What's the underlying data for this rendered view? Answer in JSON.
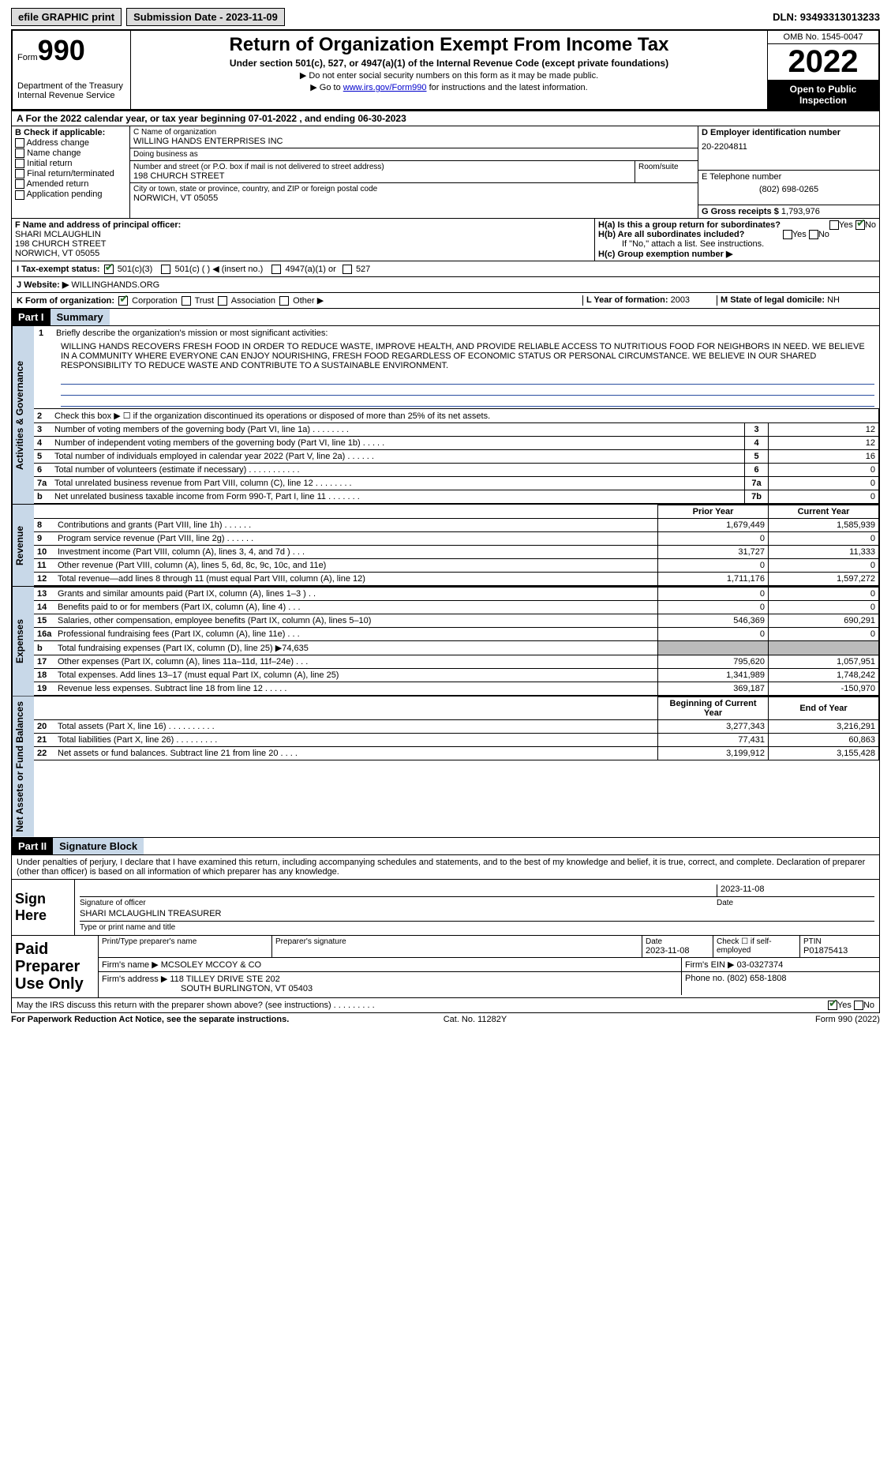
{
  "topbar": {
    "efile": "efile GRAPHIC print",
    "submission": "Submission Date - 2023-11-09",
    "dln": "DLN: 93493313013233"
  },
  "header": {
    "form_word": "Form",
    "form_num": "990",
    "title": "Return of Organization Exempt From Income Tax",
    "subtitle": "Under section 501(c), 527, or 4947(a)(1) of the Internal Revenue Code (except private foundations)",
    "note1": "▶ Do not enter social security numbers on this form as it may be made public.",
    "note2_pre": "▶ Go to ",
    "note2_link": "www.irs.gov/Form990",
    "note2_post": " for instructions and the latest information.",
    "omb": "OMB No. 1545-0047",
    "year": "2022",
    "open": "Open to Public Inspection",
    "dept": "Department of the Treasury\nInternal Revenue Service"
  },
  "row_a": "A For the 2022 calendar year, or tax year beginning 07-01-2022    , and ending 06-30-2023",
  "b": {
    "label": "B Check if applicable:",
    "opts": [
      "Address change",
      "Name change",
      "Initial return",
      "Final return/terminated",
      "Amended return",
      "Application pending"
    ]
  },
  "c": {
    "name_label": "C Name of organization",
    "name": "WILLING HANDS ENTERPRISES INC",
    "dba_label": "Doing business as",
    "dba": "",
    "addr_label": "Number and street (or P.O. box if mail is not delivered to street address)",
    "addr": "198 CHURCH STREET",
    "room_label": "Room/suite",
    "city_label": "City or town, state or province, country, and ZIP or foreign postal code",
    "city": "NORWICH, VT  05055"
  },
  "d": {
    "label": "D Employer identification number",
    "val": "20-2204811"
  },
  "e": {
    "label": "E Telephone number",
    "val": "(802) 698-0265"
  },
  "g": {
    "label": "G Gross receipts $",
    "val": "1,793,976"
  },
  "f": {
    "label": "F  Name and address of principal officer:",
    "name": "SHARI MCLAUGHLIN",
    "addr1": "198 CHURCH STREET",
    "addr2": "NORWICH, VT  05055"
  },
  "h": {
    "a": "H(a)  Is this a group return for subordinates?",
    "b": "H(b)  Are all subordinates included?",
    "note": "If \"No,\" attach a list. See instructions.",
    "c": "H(c)  Group exemption number ▶",
    "yes": "Yes",
    "no": "No"
  },
  "i": {
    "label": "I   Tax-exempt status:",
    "o1": "501(c)(3)",
    "o2": "501(c) (   ) ◀ (insert no.)",
    "o3": "4947(a)(1) or",
    "o4": "527"
  },
  "j": {
    "label": "J   Website: ▶",
    "val": "WILLINGHANDS.ORG"
  },
  "k": {
    "label": "K Form of organization:",
    "o1": "Corporation",
    "o2": "Trust",
    "o3": "Association",
    "o4": "Other ▶"
  },
  "l": {
    "label": "L Year of formation:",
    "val": "2003"
  },
  "m": {
    "label": "M State of legal domicile:",
    "val": "NH"
  },
  "part1": {
    "hdr": "Part I",
    "title": "Summary"
  },
  "vtabs": {
    "ag": "Activities & Governance",
    "rev": "Revenue",
    "exp": "Expenses",
    "net": "Net Assets or Fund Balances"
  },
  "q1": {
    "num": "1",
    "text": "Briefly describe the organization's mission or most significant activities:",
    "mission": "WILLING HANDS RECOVERS FRESH FOOD IN ORDER TO REDUCE WASTE, IMPROVE HEALTH, AND PROVIDE RELIABLE ACCESS TO NUTRITIOUS FOOD FOR NEIGHBORS IN NEED. WE BELIEVE IN A COMMUNITY WHERE EVERYONE CAN ENJOY NOURISHING, FRESH FOOD REGARDLESS OF ECONOMIC STATUS OR PERSONAL CIRCUMSTANCE. WE BELIEVE IN OUR SHARED RESPONSIBILITY TO REDUCE WASTE AND CONTRIBUTE TO A SUSTAINABLE ENVIRONMENT."
  },
  "ag_rows": [
    {
      "n": "2",
      "t": "Check this box ▶ ☐  if the organization discontinued its operations or disposed of more than 25% of its net assets."
    },
    {
      "n": "3",
      "t": "Number of voting members of the governing body (Part VI, line 1a)   .     .     .     .     .     .     .     .",
      "ln": "3",
      "v": "12"
    },
    {
      "n": "4",
      "t": "Number of independent voting members of the governing body (Part VI, line 1b)    .     .     .     .     .",
      "ln": "4",
      "v": "12"
    },
    {
      "n": "5",
      "t": "Total number of individuals employed in calendar year 2022 (Part V, line 2a)    .     .     .     .     .     .",
      "ln": "5",
      "v": "16"
    },
    {
      "n": "6",
      "t": "Total number of volunteers (estimate if necessary)   .     .     .     .     .     .     .     .     .     .     .",
      "ln": "6",
      "v": "0"
    },
    {
      "n": "7a",
      "t": "Total unrelated business revenue from Part VIII, column (C), line 12   .     .     .     .     .     .     .     .",
      "ln": "7a",
      "v": "0"
    },
    {
      "n": "b",
      "t": "Net unrelated business taxable income from Form 990-T, Part I, line 11    .     .     .     .     .     .     .",
      "ln": "7b",
      "v": "0"
    }
  ],
  "rev_hdr": {
    "prior": "Prior Year",
    "curr": "Current Year"
  },
  "rev_rows": [
    {
      "n": "8",
      "t": "Contributions and grants (Part VIII, line 1h)   .    .    .    .    .    .",
      "p": "1,679,449",
      "c": "1,585,939"
    },
    {
      "n": "9",
      "t": "Program service revenue (Part VIII, line 2g)   .    .    .    .    .    .",
      "p": "0",
      "c": "0"
    },
    {
      "n": "10",
      "t": "Investment income (Part VIII, column (A), lines 3, 4, and 7d )   .    .    .",
      "p": "31,727",
      "c": "11,333"
    },
    {
      "n": "11",
      "t": "Other revenue (Part VIII, column (A), lines 5, 6d, 8c, 9c, 10c, and 11e)",
      "p": "0",
      "c": "0"
    },
    {
      "n": "12",
      "t": "Total revenue—add lines 8 through 11 (must equal Part VIII, column (A), line 12)",
      "p": "1,711,176",
      "c": "1,597,272"
    }
  ],
  "exp_rows": [
    {
      "n": "13",
      "t": "Grants and similar amounts paid (Part IX, column (A), lines 1–3 )  .    .",
      "p": "0",
      "c": "0"
    },
    {
      "n": "14",
      "t": "Benefits paid to or for members (Part IX, column (A), line 4)   .    .    .",
      "p": "0",
      "c": "0"
    },
    {
      "n": "15",
      "t": "Salaries, other compensation, employee benefits (Part IX, column (A), lines 5–10)",
      "p": "546,369",
      "c": "690,291"
    },
    {
      "n": "16a",
      "t": "Professional fundraising fees (Part IX, column (A), line 11e)   .    .    .",
      "p": "0",
      "c": "0"
    },
    {
      "n": "b",
      "t": "Total fundraising expenses (Part IX, column (D), line 25) ▶74,635",
      "p": "",
      "c": "",
      "grey": true
    },
    {
      "n": "17",
      "t": "Other expenses (Part IX, column (A), lines 11a–11d, 11f–24e)   .    .    .",
      "p": "795,620",
      "c": "1,057,951"
    },
    {
      "n": "18",
      "t": "Total expenses. Add lines 13–17 (must equal Part IX, column (A), line 25)",
      "p": "1,341,989",
      "c": "1,748,242"
    },
    {
      "n": "19",
      "t": "Revenue less expenses. Subtract line 18 from line 12   .    .    .    .    .",
      "p": "369,187",
      "c": "-150,970"
    }
  ],
  "net_hdr": {
    "beg": "Beginning of Current Year",
    "end": "End of Year"
  },
  "net_rows": [
    {
      "n": "20",
      "t": "Total assets (Part X, line 16)   .     .     .     .     .     .     .     .     .     .",
      "p": "3,277,343",
      "c": "3,216,291"
    },
    {
      "n": "21",
      "t": "Total liabilities (Part X, line 26)   .     .     .     .     .     .     .     .     .",
      "p": "77,431",
      "c": "60,863"
    },
    {
      "n": "22",
      "t": "Net assets or fund balances. Subtract line 21 from line 20   .     .     .     .",
      "p": "3,199,912",
      "c": "3,155,428"
    }
  ],
  "part2": {
    "hdr": "Part II",
    "title": "Signature Block"
  },
  "sig": {
    "text": "Under penalties of perjury, I declare that I have examined this return, including accompanying schedules and statements, and to the best of my knowledge and belief, it is true, correct, and complete. Declaration of preparer (other than officer) is based on all information of which preparer has any knowledge.",
    "sign_here": "Sign Here",
    "sig_label": "Signature of officer",
    "date_label": "Date",
    "date": "2023-11-08",
    "name": "SHARI MCLAUGHLIN  TREASURER",
    "name_label": "Type or print name and title"
  },
  "paid": {
    "left": "Paid Preparer Use Only",
    "h1": "Print/Type preparer's name",
    "h2": "Preparer's signature",
    "h3": "Date",
    "h3v": "2023-11-08",
    "h4": "Check ☐ if self-employed",
    "h5": "PTIN",
    "h5v": "P01875413",
    "firm_label": "Firm's name    ▶",
    "firm": "MCSOLEY MCCOY & CO",
    "ein_label": "Firm's EIN ▶",
    "ein": "03-0327374",
    "addr_label": "Firm's address ▶",
    "addr1": "118 TILLEY DRIVE STE 202",
    "addr2": "SOUTH BURLINGTON, VT  05403",
    "phone_label": "Phone no.",
    "phone": "(802) 658-1808"
  },
  "footer": {
    "q": "May the IRS discuss this return with the preparer shown above? (see instructions)   .     .     .     .     .     .     .     .     .",
    "yes": "Yes",
    "no": "No"
  },
  "bottom": {
    "l": "For Paperwork Reduction Act Notice, see the separate instructions.",
    "c": "Cat. No. 11282Y",
    "r": "Form 990 (2022)"
  }
}
